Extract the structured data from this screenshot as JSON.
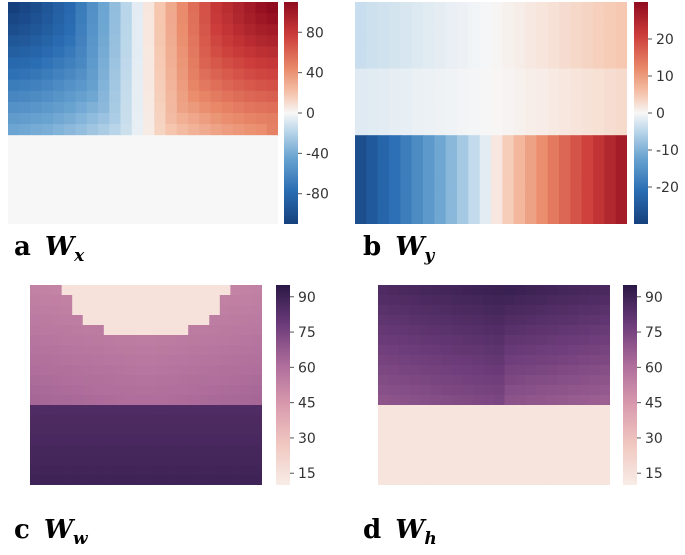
{
  "colors": {
    "div_neg": "#1b5a9c",
    "div_mid": "#f7f7f7",
    "div_pos": "#a8131f",
    "seq_low": "#f9ece8",
    "seq_high": "#2c1a4a"
  },
  "chart_data": [
    {
      "type": "heatmap",
      "panel": "a",
      "caption_letter": "a",
      "caption_symbol": "W",
      "caption_sub": "x",
      "colormap": "RdBu_r",
      "vmin": -110,
      "vmax": 110,
      "colorbar_ticks": [
        "80",
        "40",
        "0",
        "-40",
        "-80"
      ],
      "colorbar_values": [
        80,
        40,
        0,
        -40,
        -80
      ],
      "grid": "20x20",
      "description_values": [
        [
          -100,
          -95,
          -75,
          -60,
          -45,
          -30,
          -20,
          -10,
          -5,
          0,
          0,
          5,
          10,
          20,
          35,
          55,
          70,
          85,
          100,
          110
        ],
        [
          -95,
          -90,
          -72,
          -58,
          -42,
          -30,
          -18,
          -10,
          -5,
          0,
          0,
          5,
          10,
          18,
          32,
          50,
          68,
          82,
          95,
          105
        ],
        [
          -90,
          -85,
          -70,
          -55,
          -40,
          -28,
          -16,
          -8,
          -4,
          0,
          0,
          4,
          8,
          16,
          30,
          48,
          65,
          78,
          88,
          95
        ],
        [
          -80,
          -78,
          -68,
          -52,
          -38,
          -26,
          -15,
          -8,
          -3,
          0,
          0,
          3,
          8,
          14,
          28,
          45,
          60,
          70,
          78,
          82
        ],
        [
          -70,
          -70,
          -64,
          -50,
          -36,
          -24,
          -14,
          -7,
          -3,
          0,
          0,
          3,
          7,
          14,
          30,
          48,
          58,
          64,
          68,
          70
        ],
        [
          -62,
          -62,
          -58,
          -48,
          -34,
          -22,
          -12,
          -6,
          -2,
          0,
          0,
          2,
          6,
          20,
          40,
          52,
          56,
          58,
          58,
          58
        ],
        [
          -55,
          -55,
          -52,
          -44,
          -30,
          -18,
          -10,
          -5,
          -2,
          0,
          0,
          2,
          6,
          28,
          44,
          50,
          52,
          52,
          52,
          52
        ],
        [
          -48,
          -48,
          -46,
          -40,
          -26,
          -14,
          -8,
          -4,
          -1,
          0,
          0,
          1,
          4,
          32,
          42,
          46,
          46,
          46,
          46,
          46
        ],
        [
          -40,
          -40,
          -38,
          -34,
          -22,
          -10,
          -5,
          -2,
          0,
          0,
          0,
          0,
          2,
          30,
          38,
          40,
          40,
          40,
          40,
          40
        ],
        [
          -32,
          -32,
          -30,
          -28,
          -18,
          -6,
          -2,
          0,
          0,
          0,
          0,
          0,
          0,
          26,
          34,
          34,
          34,
          34,
          34,
          34
        ],
        [
          -5,
          -5,
          -5,
          -4,
          -3,
          -2,
          -1,
          0,
          0,
          0,
          0,
          0,
          0,
          2,
          3,
          3,
          3,
          3,
          3,
          3
        ]
      ]
    },
    {
      "type": "heatmap",
      "panel": "b",
      "caption_letter": "b",
      "caption_symbol": "W",
      "caption_sub": "y",
      "colormap": "RdBu_r",
      "vmin": -30,
      "vmax": 30,
      "colorbar_ticks": [
        "20",
        "10",
        "0",
        "-10",
        "-20"
      ],
      "colorbar_values": [
        20,
        10,
        0,
        -10,
        -20
      ]
    },
    {
      "type": "heatmap",
      "panel": "c",
      "caption_letter": "c",
      "caption_symbol": "W",
      "caption_sub": "w",
      "colormap": "sequential-purple",
      "vmin": 10,
      "vmax": 95,
      "colorbar_ticks": [
        "90",
        "75",
        "60",
        "45",
        "30",
        "15"
      ],
      "colorbar_values": [
        90,
        75,
        60,
        45,
        30,
        15
      ]
    },
    {
      "type": "heatmap",
      "panel": "d",
      "caption_letter": "d",
      "caption_symbol": "W",
      "caption_sub": "h",
      "colormap": "sequential-purple",
      "vmin": 10,
      "vmax": 95,
      "colorbar_ticks": [
        "90",
        "75",
        "60",
        "45",
        "30",
        "15"
      ],
      "colorbar_values": [
        90,
        75,
        60,
        45,
        30,
        15
      ]
    }
  ]
}
